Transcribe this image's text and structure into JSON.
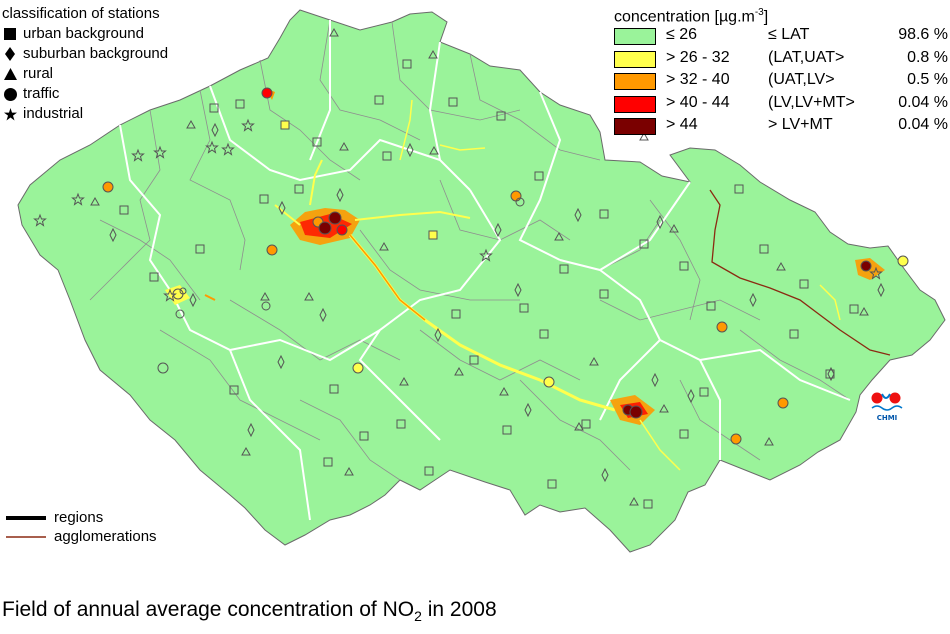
{
  "caption": {
    "prefix": "Field of annual average concentration of NO",
    "sub": "2",
    "suffix": " in 2008"
  },
  "stations_legend": {
    "title": "classification of stations",
    "items": [
      {
        "symbol": "square",
        "label": "urban background"
      },
      {
        "symbol": "diamond",
        "label": "suburban background"
      },
      {
        "symbol": "triangle",
        "label": "rural"
      },
      {
        "symbol": "circle",
        "label": "traffic"
      },
      {
        "symbol": "star",
        "label": "industrial"
      }
    ]
  },
  "concentration_legend": {
    "title_prefix": "concentration [µg.m",
    "title_sup": "-3",
    "title_suffix": "]",
    "classes": [
      {
        "range": "≤ 26",
        "class": "≤ LAT",
        "pct": "98.6 %",
        "color": "#9af39a"
      },
      {
        "range": "> 26 - 32",
        "class": "(LAT,UAT>",
        "pct": "0.8 %",
        "color": "#ffff4d"
      },
      {
        "range": "> 32 - 40",
        "class": "(UAT,LV>",
        "pct": "0.5 %",
        "color": "#ff9900"
      },
      {
        "range": "> 40 - 44",
        "class": "(LV,LV+MT>",
        "pct": "0.04 %",
        "color": "#ff0000"
      },
      {
        "range": "> 44",
        "class": "> LV+MT",
        "pct": "0.04 %",
        "color": "#7a0000"
      }
    ]
  },
  "lines_legend": [
    {
      "label": "regions",
      "color": "#000000"
    },
    {
      "label": "agglomerations",
      "color": "#8b2a12"
    }
  ],
  "logo": {
    "text": "CHMI"
  },
  "colors": {
    "land": "#9af39a",
    "borders": "#8f8f8f",
    "regions": "#ffffff"
  }
}
